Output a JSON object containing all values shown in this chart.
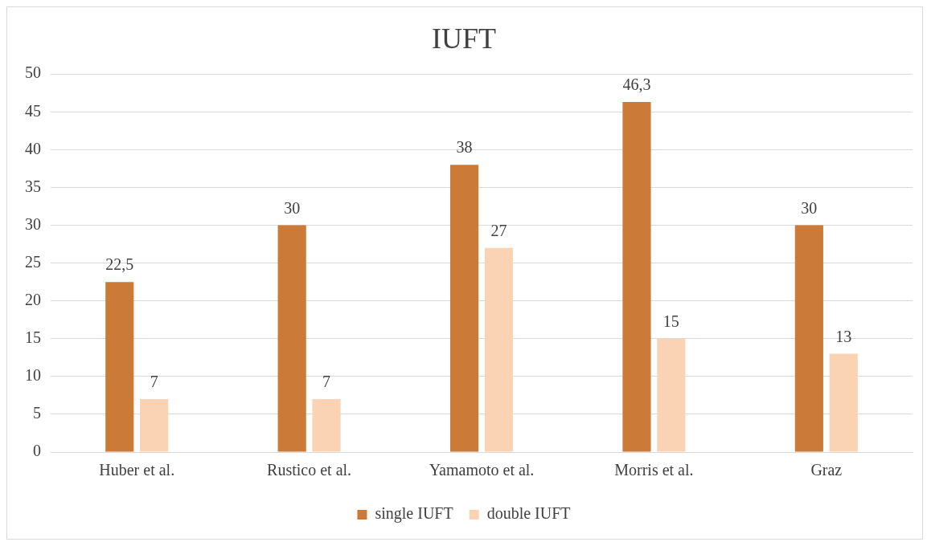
{
  "chart_data": {
    "type": "bar",
    "title": "IUFT",
    "categories": [
      "Huber et al.",
      "Rustico et al.",
      "Yamamoto et al.",
      "Morris et al.",
      "Graz"
    ],
    "series": [
      {
        "name": "single IUFT",
        "color": "#cc7a38",
        "values": [
          22.5,
          30,
          38,
          46.3,
          30
        ],
        "value_labels": [
          "22,5",
          "30",
          "38",
          "46,3",
          "30"
        ]
      },
      {
        "name": "double IUFT",
        "color": "#fad3b4",
        "values": [
          7,
          7,
          27,
          15,
          13
        ],
        "value_labels": [
          "7",
          "7",
          "27",
          "15",
          "13"
        ]
      }
    ],
    "ylim": [
      0,
      50
    ],
    "yticks": [
      0,
      5,
      10,
      15,
      20,
      25,
      30,
      35,
      40,
      45,
      50
    ],
    "grid": "y",
    "legend": "bottom"
  }
}
